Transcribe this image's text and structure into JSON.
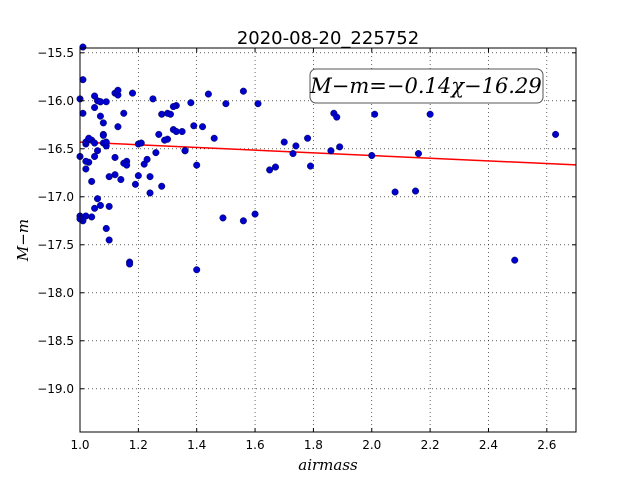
{
  "chart_data": {
    "type": "scatter",
    "title": "2020-08-20_225752",
    "xlabel": "airmass",
    "ylabel": "M−m",
    "xlim": [
      1.0,
      2.7
    ],
    "ylim": [
      -19.45,
      -15.45
    ],
    "y_inverted": true,
    "grid": true,
    "grid_style": "dotted",
    "x_ticks": [
      1.0,
      1.2,
      1.4,
      1.6,
      1.8,
      2.0,
      2.2,
      2.4,
      2.6
    ],
    "x_tick_labels": [
      "1.0",
      "1.2",
      "1.4",
      "1.6",
      "1.8",
      "2.0",
      "2.2",
      "2.4",
      "2.6"
    ],
    "y_ticks": [
      -15.5,
      -16.0,
      -16.5,
      -17.0,
      -17.5,
      -18.0,
      -18.5,
      -19.0
    ],
    "y_tick_labels": [
      "−15.5",
      "−16.0",
      "−16.5",
      "−17.0",
      "−17.5",
      "−18.0",
      "−18.5",
      "−19.0"
    ],
    "annotation": "M−m=−0.14χ−16.29",
    "annotation_position": "top-right",
    "fit": {
      "slope": -0.14,
      "intercept": -16.29,
      "color": "#ff0000"
    },
    "series": [
      {
        "color": "#0000cc",
        "x": [
          1.0,
          1.01,
          1.01,
          1.02,
          1.02,
          1.04,
          1.05,
          1.03,
          1.06,
          1.05,
          1.07,
          1.08,
          1.07,
          1.09,
          1.08,
          1.12,
          1.15,
          1.13,
          1.13,
          1.18,
          1.0,
          1.01,
          1.02,
          1.03,
          1.04,
          1.05,
          1.06,
          1.07,
          1.08,
          1.09,
          1.1,
          1.12,
          1.14,
          1.16,
          1.19,
          1.2,
          1.22,
          1.24,
          1.26,
          1.28,
          1.3,
          1.32,
          1.33,
          1.35,
          1.38,
          1.4,
          1.42,
          1.44,
          1.5,
          1.56,
          1.61,
          1.02,
          1.04,
          1.05,
          1.07,
          1.08,
          1.1,
          1.12,
          1.13,
          1.15,
          1.17,
          1.2,
          1.23,
          1.25,
          1.28,
          1.3,
          1.33,
          1.36,
          1.39,
          1.46,
          1.0,
          1.01,
          1.03,
          1.05,
          1.06,
          1.09,
          1.09,
          1.1,
          1.16,
          1.17,
          1.21,
          1.24,
          1.27,
          1.29,
          1.49,
          1.56,
          1.6,
          1.4,
          1.7,
          1.74,
          1.78,
          1.86,
          1.89,
          1.65,
          1.67,
          1.73,
          1.79,
          1.87,
          1.88,
          2.0,
          2.01,
          2.08,
          2.15,
          2.16,
          2.2,
          2.49,
          2.63,
          1.0,
          1.02,
          1.31,
          1.32,
          1.36
        ],
        "y": [
          -15.98,
          -15.78,
          -15.44,
          -16.45,
          -16.43,
          -16.41,
          -15.95,
          -16.4,
          -16.0,
          -16.07,
          -16.16,
          -16.23,
          -16.01,
          -16.01,
          -16.35,
          -15.92,
          -16.13,
          -15.94,
          -15.89,
          -15.92,
          -16.58,
          -16.13,
          -16.71,
          -16.39,
          -16.84,
          -16.58,
          -17.02,
          -17.09,
          -16.44,
          -17.33,
          -17.45,
          -16.59,
          -16.82,
          -16.63,
          -16.87,
          -16.78,
          -16.66,
          -16.96,
          -16.54,
          -16.89,
          -16.4,
          -16.3,
          -16.05,
          -16.32,
          -16.02,
          -16.67,
          -16.27,
          -15.93,
          -16.03,
          -15.9,
          -16.03,
          -17.2,
          -17.21,
          -17.12,
          -16.01,
          -16.36,
          -17.1,
          -16.77,
          -16.27,
          -16.65,
          -17.68,
          -16.45,
          -16.61,
          -15.98,
          -16.14,
          -16.13,
          -16.32,
          -16.52,
          -16.26,
          -16.39,
          -17.2,
          -17.25,
          -16.64,
          -16.44,
          -16.52,
          -16.47,
          -16.43,
          -16.79,
          -16.67,
          -17.7,
          -16.44,
          -16.79,
          -16.35,
          -16.41,
          -17.22,
          -17.25,
          -17.18,
          -17.76,
          -16.43,
          -16.47,
          -16.39,
          -16.52,
          -16.48,
          -16.72,
          -16.69,
          -16.55,
          -16.68,
          -16.13,
          -16.17,
          -16.57,
          -16.14,
          -16.95,
          -16.94,
          -16.55,
          -16.14,
          -17.66,
          -16.35,
          -17.23,
          -16.63,
          -16.14,
          -16.06,
          -16.52
        ]
      }
    ]
  }
}
